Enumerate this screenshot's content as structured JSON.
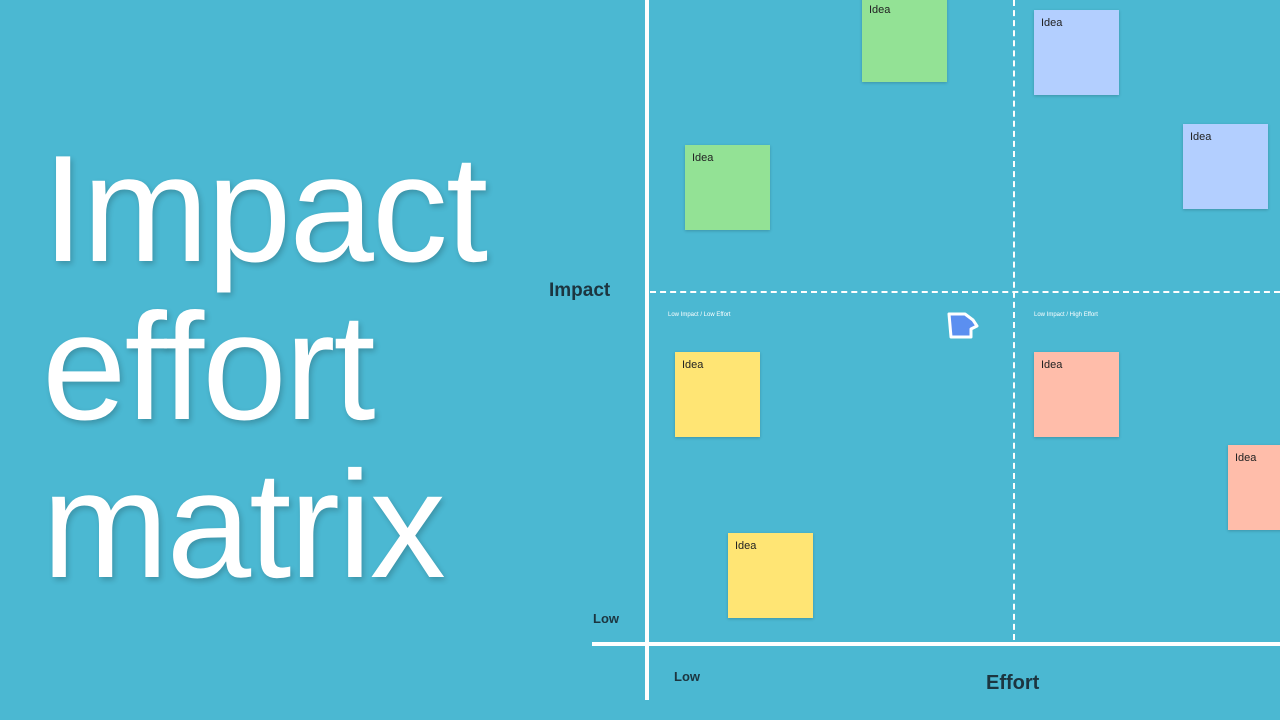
{
  "title": {
    "lines": [
      "Impact",
      "effort",
      "matrix"
    ]
  },
  "axes": {
    "y_label": "Impact",
    "y_low": "Low",
    "x_label": "Effort",
    "x_low": "Low"
  },
  "quadrant_labels": [
    "Low Impact / Low Effort",
    "Low Impact / High Effort"
  ],
  "notes": [
    {
      "label": "Idea",
      "color": "#93e295"
    },
    {
      "label": "Idea",
      "color": "#b3cfff"
    },
    {
      "label": "Idea",
      "color": "#93e295"
    },
    {
      "label": "Idea",
      "color": "#b3cfff"
    },
    {
      "label": "Idea",
      "color": "#ffe574"
    },
    {
      "label": "Idea",
      "color": "#ffbdaa"
    },
    {
      "label": "Idea",
      "color": "#ffbdaa"
    },
    {
      "label": "Idea",
      "color": "#ffe574"
    }
  ]
}
